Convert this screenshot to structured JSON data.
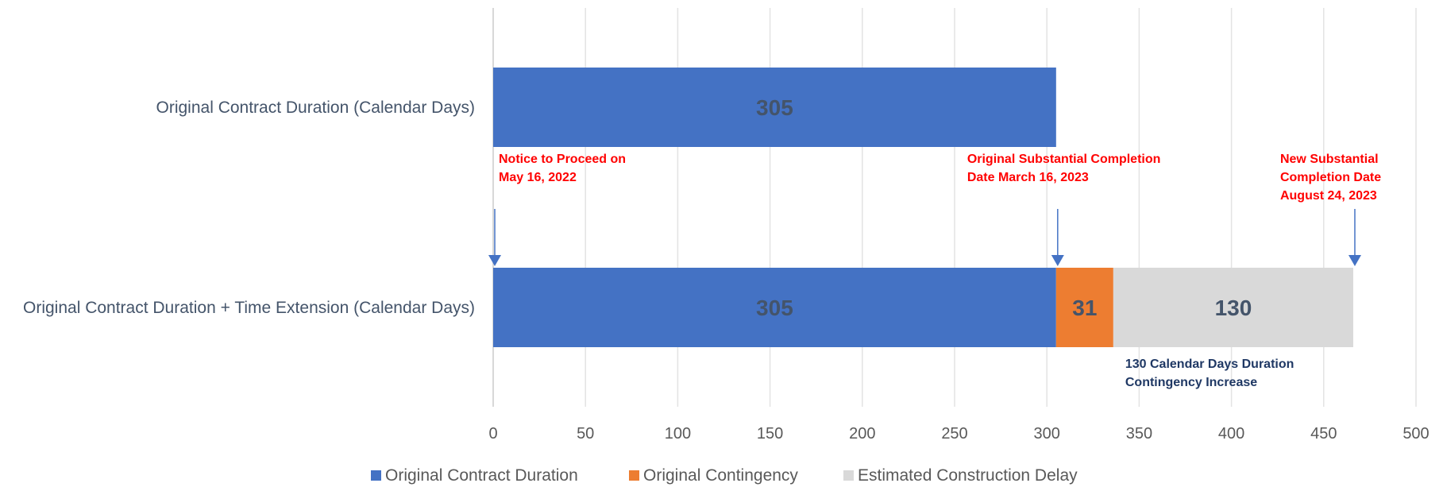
{
  "chart_data": {
    "type": "bar",
    "orientation": "horizontal",
    "stacked": true,
    "categories": [
      "Original Contract Duration (Calendar Days)",
      "Original Contract Duration + Time Extension (Calendar Days)"
    ],
    "series": [
      {
        "name": "Original Contract Duration",
        "color": "#4472c4",
        "values": [
          305,
          305
        ]
      },
      {
        "name": "Original Contingency",
        "color": "#ed7d31",
        "values": [
          0,
          31
        ]
      },
      {
        "name": "Estimated Construction Delay",
        "color": "#d9d9d9",
        "values": [
          0,
          130
        ]
      }
    ],
    "xlim": [
      0,
      500
    ],
    "xticks": [
      0,
      50,
      100,
      150,
      200,
      250,
      300,
      350,
      400,
      450,
      500
    ],
    "grid": true,
    "legend": "bottom",
    "annotations": [
      {
        "x": 0,
        "lines": [
          "Notice to Proceed on",
          "May 16, 2022"
        ],
        "color": "#ff0000",
        "arrow": true
      },
      {
        "x": 305,
        "lines": [
          "Original Substantial Completion",
          "Date March 16, 2023"
        ],
        "color": "#ff0000",
        "arrow": true
      },
      {
        "x": 466,
        "lines": [
          "New Substantial",
          "Completion Date",
          "August 24, 2023"
        ],
        "color": "#ff0000",
        "arrow": true
      },
      {
        "x": 336,
        "lines": [
          "130 Calendar Days Duration",
          "Contingency Increase"
        ],
        "color": "#1f3864",
        "arrow": false
      }
    ]
  }
}
